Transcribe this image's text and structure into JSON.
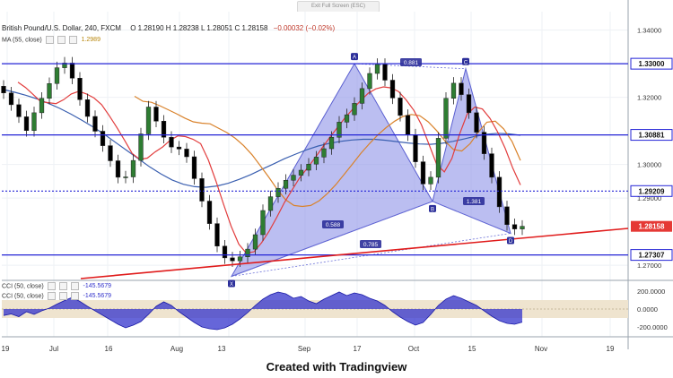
{
  "toolbar": {
    "exit_fullscreen": "Exit Full Screen (ESC)"
  },
  "header": {
    "symbol": "British Pound/U.S. Dollar, 240, FXCM",
    "open": "O 1.28190",
    "high": "H 1.28238",
    "low": "L 1.28051",
    "close": "C 1.28158",
    "change": "−0.00032 (−0.02%)"
  },
  "ma_indicator": {
    "label": "MA (55, close)",
    "value": "1.2989"
  },
  "cci_indicators": [
    {
      "label": "CCI (50, close)",
      "value": "-145.5679"
    },
    {
      "label": "CCI (50, close)",
      "value": "-145.5679"
    }
  ],
  "footer": {
    "text": "Created with Tradingview"
  },
  "colors": {
    "price_up": "#2e7d32",
    "price_down": "#000000",
    "level_line": "#2323d6",
    "trendline": "#e01b1b",
    "harmonic_fill": "#8e92e8",
    "ma_red": "#e23d3d",
    "ma_orange": "#d9822b",
    "ma_blue": "#3a5fb0",
    "cci_fill": "#3333cc",
    "cci_band": "#efe4cf",
    "current_price_tag": "#e53935"
  },
  "chart_data": {
    "type": "line",
    "title": "British Pound/U.S. Dollar, 240, FXCM",
    "ylim": [
      1.2655,
      1.3455
    ],
    "price_ticks": [
      "1.34000",
      "1.32000",
      "1.30000",
      "1.29000",
      "1.27000"
    ],
    "highlighted_levels": [
      {
        "label": "1.33000",
        "value": 1.33
      },
      {
        "label": "1.30881",
        "value": 1.30881
      },
      {
        "label": "1.29209",
        "value": 1.29209
      },
      {
        "label": "1.27307",
        "value": 1.27307
      }
    ],
    "current_price": {
      "label": "1.28158",
      "value": 1.28158
    },
    "x_ticks": [
      "19",
      "Jul",
      "16",
      "Aug",
      "13",
      "Sep",
      "17",
      "Oct",
      "15",
      "Nov",
      "19"
    ],
    "close": [
      1.3213,
      1.3178,
      1.3142,
      1.3101,
      1.3154,
      1.3197,
      1.3241,
      1.3288,
      1.3302,
      1.3257,
      1.3193,
      1.3143,
      1.3099,
      1.3056,
      1.3011,
      1.2962,
      1.2963,
      1.3012,
      1.3091,
      1.3171,
      1.3129,
      1.3081,
      1.3052,
      1.3046,
      1.3023,
      1.2958,
      1.2891,
      1.2824,
      1.2757,
      1.2722,
      1.2713,
      1.2725,
      1.2748,
      1.2791,
      1.2863,
      1.2904,
      1.2929,
      1.2953,
      1.2968,
      1.2983,
      1.3001,
      1.3022,
      1.3047,
      1.3081,
      1.3126,
      1.3148,
      1.3182,
      1.3226,
      1.3271,
      1.3298,
      1.3251,
      1.3198,
      1.3146,
      1.3088,
      1.3008,
      1.2942,
      1.2962,
      1.3078,
      1.3197,
      1.3242,
      1.3208,
      1.3154,
      1.3096,
      1.3032,
      1.2962,
      1.2874,
      1.2821,
      1.2808,
      1.2816
    ],
    "ma_red": [
      1.3245,
      1.3229,
      1.3208,
      1.3187,
      1.3184,
      1.3181,
      1.3193,
      1.321,
      1.3218,
      1.321,
      1.3198,
      1.3178,
      1.3145,
      1.311,
      1.3072,
      1.3033,
      1.3015,
      1.3019,
      1.3037,
      1.3052,
      1.3072,
      1.3085,
      1.3083,
      1.3075,
      1.3062,
      1.3014,
      1.2951,
      1.2882,
      1.2816,
      1.2763,
      1.2736,
      1.274,
      1.2767,
      1.2802,
      1.2843,
      1.2887,
      1.2924,
      1.296,
      1.2989,
      1.3019,
      1.3051,
      1.3082,
      1.3111,
      1.314,
      1.3165,
      1.319,
      1.3212,
      1.3225,
      1.3231,
      1.3228,
      1.3217,
      1.3192,
      1.3161,
      1.3118,
      1.3059,
      1.3,
      1.2978,
      1.3018,
      1.309,
      1.315,
      1.3171,
      1.3165,
      1.3137,
      1.3097,
      1.3048,
      1.2989,
      1.2939
    ],
    "ma_orange": [
      1.3203,
      1.3188,
      1.3185,
      1.3175,
      1.3163,
      1.3151,
      1.3138,
      1.3127,
      1.3123,
      1.3121,
      1.3108,
      1.3095,
      1.3078,
      1.3056,
      1.3029,
      1.2996,
      1.2962,
      1.2926,
      1.2895,
      1.2878,
      1.2875,
      1.2878,
      1.2892,
      1.2914,
      1.294,
      1.2971,
      1.3002,
      1.3034,
      1.3062,
      1.3088,
      1.311,
      1.3129,
      1.3143,
      1.3149,
      1.3145,
      1.3127,
      1.3101,
      1.307,
      1.3045,
      1.304,
      1.3062,
      1.3097,
      1.3126,
      1.3129,
      1.3106,
      1.3068,
      1.3012
    ],
    "ma_blue": [
      1.3223,
      1.3215,
      1.3206,
      1.3195,
      1.3182,
      1.3167,
      1.315,
      1.3131,
      1.3111,
      1.3089,
      1.3065,
      1.3041,
      1.3017,
      1.2993,
      1.2972,
      1.2954,
      1.2941,
      1.2934,
      1.2932,
      1.2936,
      1.2944,
      1.2956,
      1.297,
      1.2986,
      1.3001,
      1.3017,
      1.3031,
      1.3044,
      1.3055,
      1.3063,
      1.3069,
      1.3073,
      1.3075,
      1.3075,
      1.3072,
      1.3068,
      1.3064,
      1.3061,
      1.306,
      1.3063,
      1.3069,
      1.3076,
      1.3084,
      1.309,
      1.3093,
      1.3091,
      1.3087
    ],
    "harmonic_pattern": {
      "points": [
        {
          "label": "X",
          "value": 1.2667
        },
        {
          "label": "A",
          "value": 1.33
        },
        {
          "label": "B",
          "value": 1.289
        },
        {
          "label": "C",
          "value": 1.3285
        },
        {
          "label": "D",
          "value": 1.2795
        }
      ],
      "ratios": [
        {
          "label": "0.588"
        },
        {
          "label": "0.881"
        },
        {
          "label": "1.381"
        },
        {
          "label": "0.785"
        }
      ]
    },
    "cci": {
      "ylim": [
        -290,
        290
      ],
      "ticks": [
        "200.0000",
        "0.0000",
        "-200.0000"
      ],
      "band": [
        -100,
        100
      ],
      "values": [
        -72,
        -55,
        -85,
        -30,
        -60,
        -20,
        10,
        55,
        95,
        130,
        85,
        30,
        -20,
        -70,
        -120,
        -170,
        -210,
        -180,
        -140,
        -60,
        30,
        80,
        40,
        -30,
        -90,
        -150,
        -200,
        -220,
        -230,
        -210,
        -170,
        -110,
        -40,
        40,
        110,
        160,
        190,
        170,
        120,
        140,
        90,
        60,
        110,
        150,
        190,
        150,
        180,
        160,
        120,
        90,
        40,
        -30,
        -90,
        -140,
        -180,
        -150,
        -60,
        40,
        110,
        150,
        120,
        80,
        40,
        -20,
        -80,
        -130,
        -160,
        -170,
        -146
      ]
    }
  }
}
